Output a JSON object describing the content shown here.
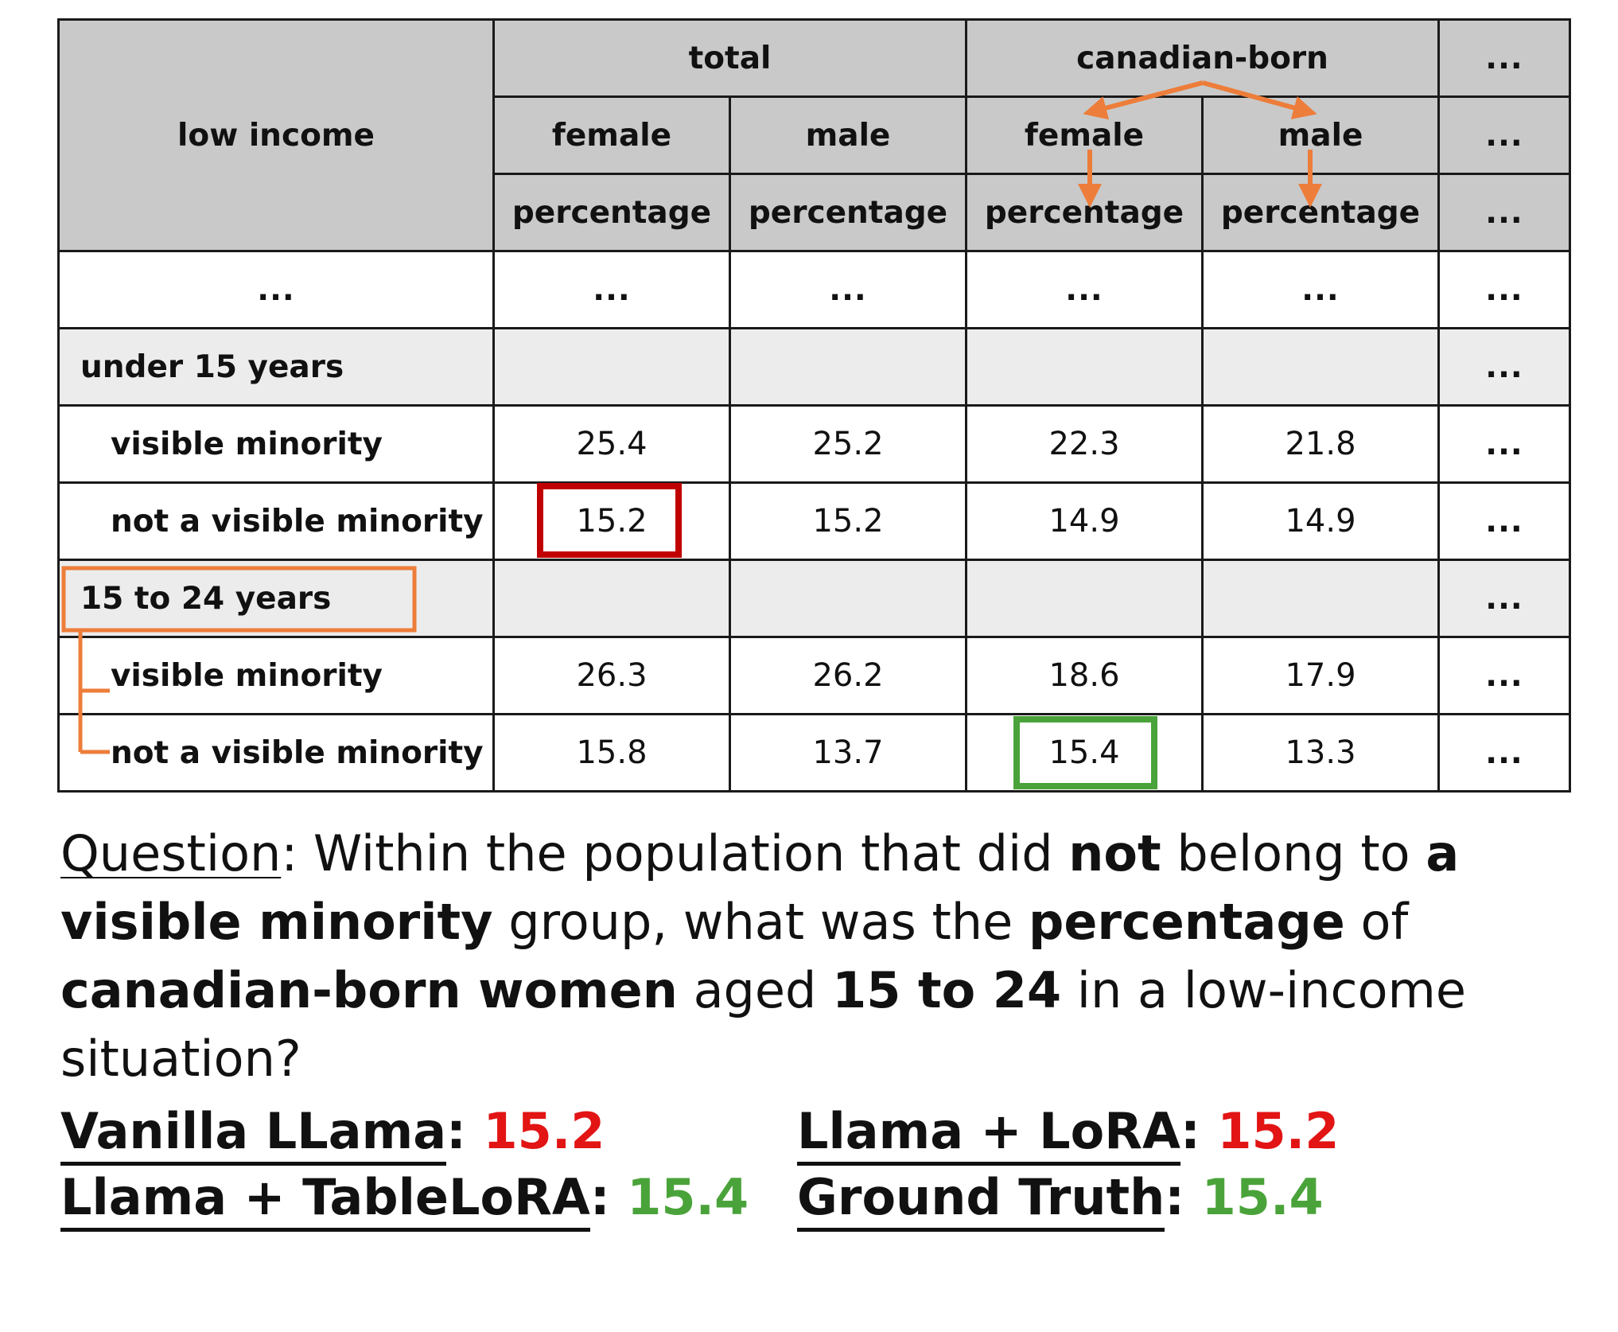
{
  "table": {
    "row_header": "low income",
    "group_headers": [
      "total",
      "canadian-born",
      "..."
    ],
    "sub_headers": [
      "female",
      "male",
      "female",
      "male",
      "..."
    ],
    "measure_headers": [
      "percentage",
      "percentage",
      "percentage",
      "percentage",
      "..."
    ],
    "ellipsis_row": [
      "...",
      "...",
      "...",
      "...",
      "...",
      "..."
    ],
    "sections": [
      {
        "label": "under 15 years",
        "more": "...",
        "rows": [
          {
            "label": "visible minority",
            "values": [
              "25.4",
              "25.2",
              "22.3",
              "21.8",
              "..."
            ]
          },
          {
            "label": "not a visible minority",
            "values": [
              "15.2",
              "15.2",
              "14.9",
              "14.9",
              "..."
            ]
          }
        ]
      },
      {
        "label": "15 to 24 years",
        "more": "...",
        "rows": [
          {
            "label": "visible minority",
            "values": [
              "26.3",
              "26.2",
              "18.6",
              "17.9",
              "..."
            ]
          },
          {
            "label": "not a visible minority",
            "values": [
              "15.8",
              "13.7",
              "15.4",
              "13.3",
              "..."
            ]
          }
        ]
      }
    ]
  },
  "question": {
    "prefix": "Question",
    "parts": [
      {
        "t": ": Within the population that did ",
        "b": false
      },
      {
        "t": "not",
        "b": true
      },
      {
        "t": " belong to ",
        "b": false
      },
      {
        "t": "a visible minority",
        "b": true
      },
      {
        "t": " group, what was the ",
        "b": false
      },
      {
        "t": "percentage",
        "b": true
      },
      {
        "t": " of ",
        "b": false
      },
      {
        "t": "canadian-born women",
        "b": true
      },
      {
        "t": " aged ",
        "b": false
      },
      {
        "t": "15 to 24",
        "b": true
      },
      {
        "t": " in a low-income situation?",
        "b": false
      }
    ]
  },
  "answers": {
    "vanilla": {
      "label": "Vanilla LLama ",
      "sep": ": ",
      "value": "15.2"
    },
    "lora": {
      "label": "Llama + LoRA",
      "sep": ": ",
      "value": "15.2"
    },
    "tablelora": {
      "label": "Llama + TableLoRA ",
      "sep": ": ",
      "value": "15.4"
    },
    "truth": {
      "label": "Ground Truth",
      "sep": ": ",
      "value": "15.4"
    }
  },
  "colors": {
    "header_bg": "#c9c9c9",
    "section_bg": "#ececec",
    "annotation_orange": "#ed7d3a",
    "wrong_red": "#e21414",
    "wrong_box": "#c00000",
    "correct_green": "#4aa33a"
  }
}
